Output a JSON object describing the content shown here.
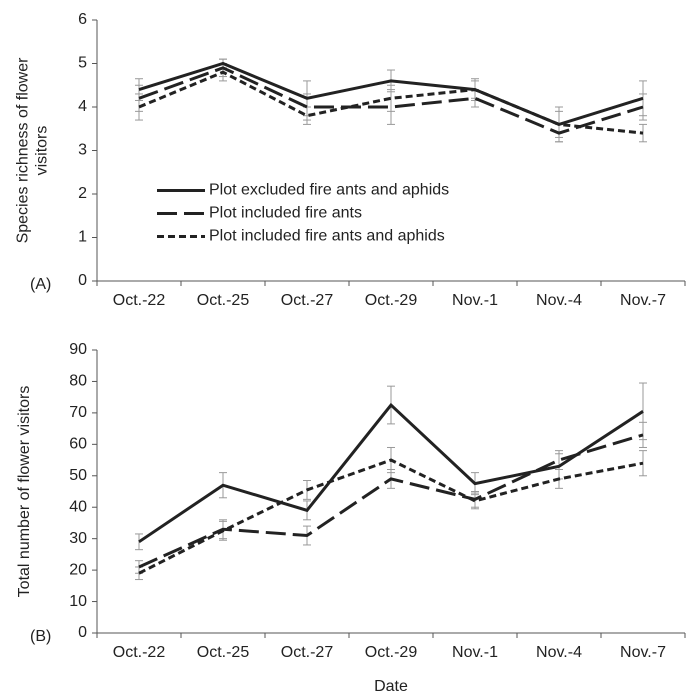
{
  "chart_data": [
    {
      "type": "line",
      "panel_label": "(A)",
      "ylabel": [
        "Species richness of flower",
        "visitors"
      ],
      "categories": [
        "Oct.-22",
        "Oct.-25",
        "Oct.-27",
        "Oct.-29",
        "Nov.-1",
        "Nov.-4",
        "Nov.-7"
      ],
      "ylim": [
        0,
        6
      ],
      "yticks": [
        0,
        1,
        2,
        3,
        4,
        5,
        6
      ],
      "legend": "center-left",
      "series": [
        {
          "name": "Plot excluded fire ants and aphids",
          "color": "#222222",
          "dash": "solid",
          "values": [
            4.4,
            5.0,
            4.2,
            4.6,
            4.4,
            3.6,
            4.2
          ],
          "errors": [
            0.25,
            0.1,
            0.4,
            0.25,
            0.25,
            0.4,
            0.4
          ]
        },
        {
          "name": "Plot included fire ants",
          "color": "#222222",
          "dash": "long",
          "values": [
            4.2,
            4.9,
            4.0,
            4.0,
            4.2,
            3.4,
            4.0
          ],
          "errors": [
            0.3,
            0.2,
            0.3,
            0.4,
            0.2,
            0.2,
            0.3
          ]
        },
        {
          "name": "Plot included fire ants and aphids",
          "color": "#222222",
          "dash": "short",
          "values": [
            4.0,
            4.8,
            3.8,
            4.2,
            4.4,
            3.6,
            3.4
          ],
          "errors": [
            0.3,
            0.2,
            0.2,
            0.3,
            0.2,
            0.3,
            0.2
          ]
        }
      ]
    },
    {
      "type": "line",
      "panel_label": "(B)",
      "ylabel": [
        "Total number of flower visitors"
      ],
      "xlabel": "Date",
      "categories": [
        "Oct.-22",
        "Oct.-25",
        "Oct.-27",
        "Oct.-29",
        "Nov.-1",
        "Nov.-4",
        "Nov.-7"
      ],
      "ylim": [
        0,
        90
      ],
      "yticks": [
        0,
        10,
        20,
        30,
        40,
        50,
        60,
        70,
        80,
        90
      ],
      "series": [
        {
          "color": "#222222",
          "dash": "solid",
          "values": [
            29,
            47,
            39,
            72.5,
            47.5,
            53,
            70.5
          ],
          "errors": [
            2.5,
            4,
            3,
            6,
            3.5,
            4,
            9
          ]
        },
        {
          "color": "#222222",
          "dash": "long",
          "values": [
            21,
            33,
            31,
            49,
            42.5,
            55,
            63
          ],
          "errors": [
            2,
            3,
            3,
            3,
            2.5,
            3,
            4
          ]
        },
        {
          "color": "#222222",
          "dash": "short",
          "values": [
            19,
            32.5,
            45.5,
            55,
            42,
            49,
            54
          ],
          "errors": [
            2,
            3,
            3,
            4,
            2.5,
            3,
            4
          ]
        }
      ]
    }
  ]
}
